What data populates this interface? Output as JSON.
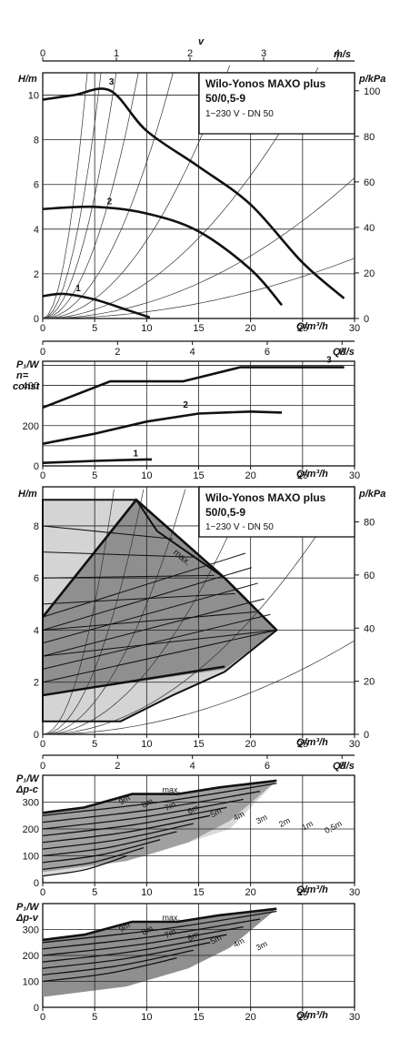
{
  "title_block": {
    "name": "Wilo-Yonos MAXO plus",
    "model": "50/0,5-9",
    "spec": "1~230 V - DN 50"
  },
  "axes": {
    "v_label": "v",
    "v_unit": "m/s",
    "v_ticks": [
      "0",
      "1",
      "2",
      "3",
      "4"
    ],
    "h_label": "H/m",
    "p_label": "p/kPa",
    "q_label": "Q/m³/h",
    "ql_label": "Q/l/s",
    "p1_label": "P₁/W",
    "n_const": "n=\nconst",
    "dpc": "Δp-c",
    "dpv": "Δp-v",
    "q_ticks": [
      "0",
      "5",
      "10",
      "15",
      "20",
      "25",
      "30"
    ],
    "ql_ticks": [
      "0",
      "2",
      "4",
      "6",
      "8"
    ]
  },
  "chart_data": [
    {
      "type": "line",
      "xlabel": "Q/m³/h",
      "ylabel": "H/m",
      "ylim": [
        0,
        11
      ],
      "xlim": [
        0,
        30
      ],
      "series": [
        {
          "name": "1",
          "points": [
            [
              0,
              1.0
            ],
            [
              2,
              1.1
            ],
            [
              5,
              0.85
            ],
            [
              8,
              0.4
            ],
            [
              10.3,
              0.05
            ]
          ]
        },
        {
          "name": "2",
          "points": [
            [
              0,
              4.9
            ],
            [
              5,
              5.0
            ],
            [
              10,
              4.7
            ],
            [
              15,
              3.9
            ],
            [
              20,
              2.2
            ],
            [
              23,
              0.6
            ]
          ]
        },
        {
          "name": "3",
          "points": [
            [
              0,
              9.8
            ],
            [
              3,
              10.0
            ],
            [
              6.5,
              10.2
            ],
            [
              10,
              8.4
            ],
            [
              15,
              6.8
            ],
            [
              20,
              5.1
            ],
            [
              25,
              2.5
            ],
            [
              29,
              0.9
            ]
          ]
        }
      ],
      "y_ticks": [
        "0",
        "2",
        "4",
        "6",
        "8",
        "10"
      ],
      "p_ticks": [
        "0",
        "20",
        "40",
        "60",
        "80",
        "100"
      ],
      "grid": true
    },
    {
      "type": "line",
      "xlabel": "Q/m³/h",
      "ylabel": "P₁/W",
      "ylim": [
        0,
        520
      ],
      "xlim": [
        0,
        30
      ],
      "series": [
        {
          "name": "1",
          "points": [
            [
              0,
              15
            ],
            [
              5,
              25
            ],
            [
              10,
              32
            ],
            [
              10.5,
              32
            ]
          ]
        },
        {
          "name": "2",
          "points": [
            [
              0,
              110
            ],
            [
              5,
              160
            ],
            [
              10,
              220
            ],
            [
              15,
              260
            ],
            [
              20,
              270
            ],
            [
              23,
              265
            ]
          ]
        },
        {
          "name": "3",
          "points": [
            [
              0,
              290
            ],
            [
              6.5,
              420
            ],
            [
              13.5,
              420
            ],
            [
              19,
              490
            ],
            [
              29,
              490
            ]
          ]
        }
      ],
      "y_ticks": [
        "0",
        "200",
        "400"
      ],
      "grid": true
    },
    {
      "type": "area",
      "xlabel": "Q/m³/h",
      "ylabel": "H/m",
      "xlim": [
        0,
        30
      ],
      "ylim": [
        0,
        9.5
      ],
      "y_ticks": [
        "0",
        "2",
        "4",
        "6",
        "8"
      ],
      "p_ticks": [
        "0",
        "20",
        "40",
        "60",
        "80"
      ],
      "max_label": "max.",
      "grid": true
    },
    {
      "type": "area",
      "xlabel": "Q/m³/h",
      "ylabel": "P₁/W",
      "xlim": [
        0,
        30
      ],
      "ylim": [
        0,
        400
      ],
      "y_ticks": [
        "0",
        "100",
        "200",
        "300"
      ],
      "max_label": "max.",
      "curve_labels": [
        "9m",
        "8m",
        "7m",
        "6m",
        "5m",
        "4m",
        "3m",
        "2m",
        "1m",
        "0,5m"
      ]
    },
    {
      "type": "area",
      "xlabel": "Q/m³/h",
      "ylabel": "P₁/W",
      "xlim": [
        0,
        30
      ],
      "ylim": [
        0,
        400
      ],
      "y_ticks": [
        "0",
        "100",
        "200",
        "300"
      ],
      "max_label": "max.",
      "curve_labels": [
        "9m",
        "8m",
        "7m",
        "6m",
        "5m",
        "4m",
        "3m"
      ]
    }
  ]
}
